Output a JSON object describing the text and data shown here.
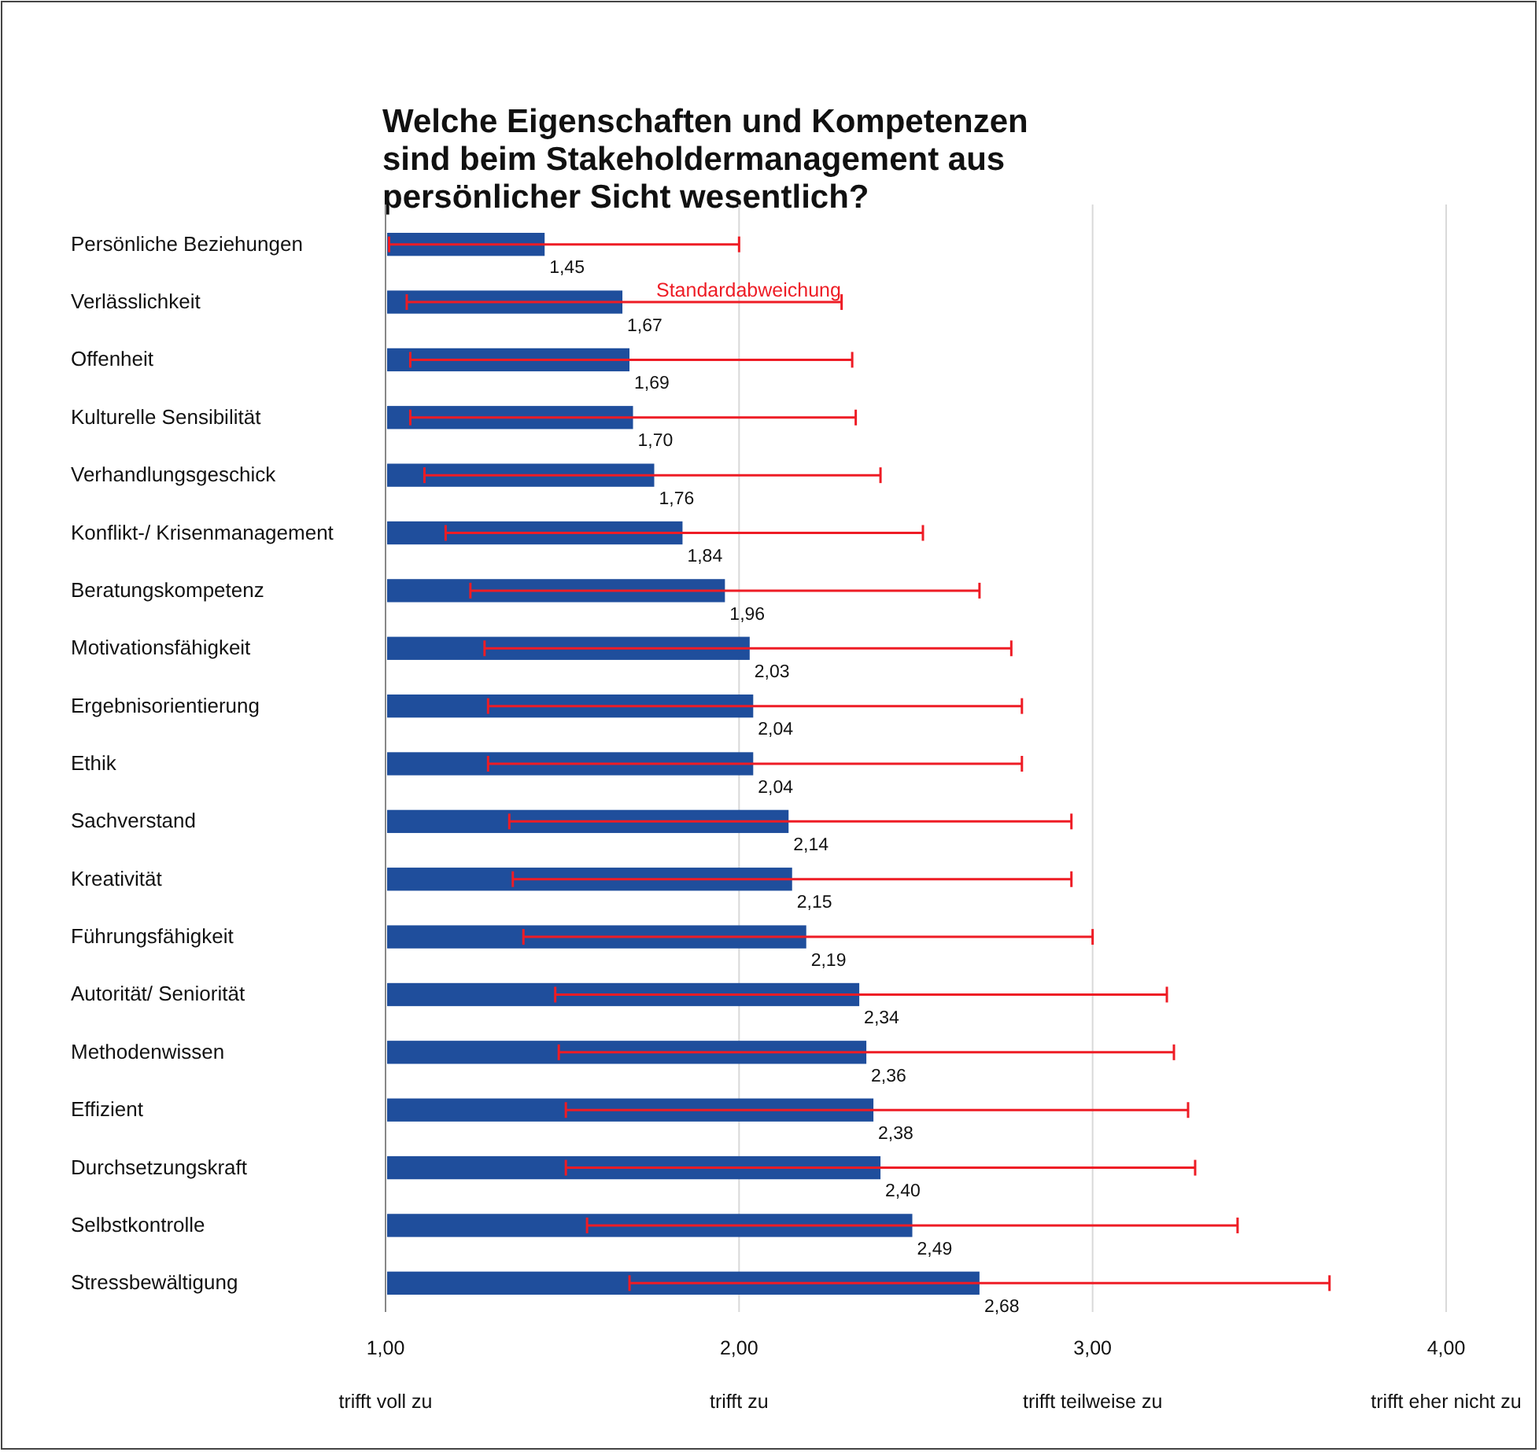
{
  "chart_data": {
    "type": "bar",
    "orientation": "horizontal",
    "title": "Welche Eigenschaften und Kompetenzen sind beim Stakeholdermanagement aus persönlicher Sicht wesentlich?",
    "categories": [
      "Persönliche Beziehungen",
      "Verlässlichkeit",
      "Offenheit",
      "Kulturelle Sensibilität",
      "Verhandlungsgeschick",
      "Konflikt-/ Krisenmanagement",
      "Beratungskompetenz",
      "Motivationsfähigkeit",
      "Ergebnisorientierung",
      "Ethik",
      "Sachverstand",
      "Kreativität",
      "Führungsfähigkeit",
      "Autorität/ Seniorität",
      "Methodenwissen",
      "Effizient",
      "Durchsetzungskraft",
      "Selbstkontrolle",
      "Stressbewältigung"
    ],
    "series": [
      {
        "color": "#1f4e9c",
        "values": [
          1.45,
          1.67,
          1.69,
          1.7,
          1.76,
          1.84,
          1.96,
          2.03,
          2.04,
          2.04,
          2.14,
          2.15,
          2.19,
          2.34,
          2.36,
          2.38,
          2.4,
          2.49,
          2.68
        ],
        "value_labels": [
          "1,45",
          "1,67",
          "1,69",
          "1,70",
          "1,76",
          "1,84",
          "1,96",
          "2,03",
          "2,04",
          "2,04",
          "2,14",
          "2,15",
          "2,19",
          "2,34",
          "2,36",
          "2,38",
          "2,40",
          "2,49",
          "2,68"
        ],
        "errors": [
          [
            1.01,
            2.0
          ],
          [
            1.06,
            2.29
          ],
          [
            1.07,
            2.32
          ],
          [
            1.07,
            2.33
          ],
          [
            1.11,
            2.4
          ],
          [
            1.17,
            2.52
          ],
          [
            1.24,
            2.68
          ],
          [
            1.28,
            2.77
          ],
          [
            1.29,
            2.8
          ],
          [
            1.29,
            2.8
          ],
          [
            1.35,
            2.94
          ],
          [
            1.36,
            2.94
          ],
          [
            1.39,
            3.0
          ],
          [
            1.48,
            3.21
          ],
          [
            1.49,
            3.23
          ],
          [
            1.51,
            3.27
          ],
          [
            1.51,
            3.29
          ],
          [
            1.57,
            3.41
          ],
          [
            1.69,
            3.67
          ]
        ]
      }
    ],
    "xlim": [
      1,
      4
    ],
    "xticks": [
      {
        "value": 1,
        "label": "1,00"
      },
      {
        "value": 2,
        "label": "2,00"
      },
      {
        "value": 3,
        "label": "3,00"
      },
      {
        "value": 4,
        "label": "4,00"
      }
    ],
    "grid": "x",
    "annotations": [
      "Standardabweichung",
      "trifft voll zu",
      "trifft zu",
      "trifft teilweise zu",
      "trifft eher nicht zu"
    ]
  }
}
